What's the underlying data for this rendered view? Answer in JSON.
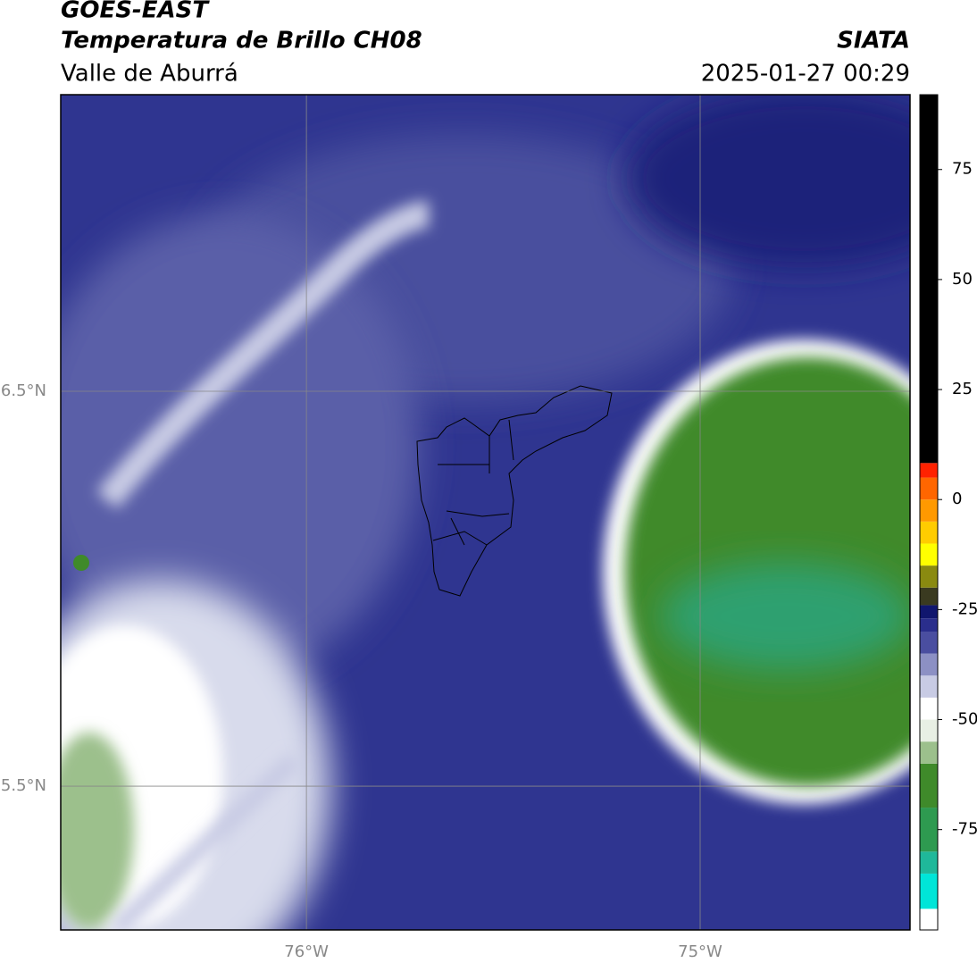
{
  "header": {
    "title": "GOES-EAST",
    "subtitle": "Temperatura de Brillo CH08",
    "region": "Valle de Aburrá",
    "source": "SIATA",
    "datetime": "2025-01-27 00:29"
  },
  "map": {
    "xlim": [
      -76.624,
      -74.467
    ],
    "ylim": [
      5.136,
      7.251
    ],
    "xticks": [
      {
        "value": -76,
        "label": "76°W"
      },
      {
        "value": -75,
        "label": "75°W"
      }
    ],
    "yticks": [
      {
        "value": 6.5,
        "label": "6.5°N"
      },
      {
        "value": 5.5,
        "label": "5.5°N"
      }
    ],
    "grid": true
  },
  "colorbar": {
    "lim": [
      -97.8,
      92
    ],
    "ticks": [
      75,
      50,
      25,
      0,
      -25,
      -50,
      -75
    ],
    "bounds": [
      -97.8,
      -93,
      -85,
      -80,
      -70,
      -60,
      -55,
      -50,
      -45,
      -40,
      -35,
      -30,
      -27,
      -24,
      -20,
      -15,
      -10,
      -5,
      0,
      5,
      8.3,
      92
    ],
    "colors": [
      "#ffffff",
      "#00e5d8",
      "#1fb89a",
      "#2e9a50",
      "#3f8a2a",
      "#9cc08c",
      "#e8efe4",
      "#ffffff",
      "#c8cbe4",
      "#8c90c4",
      "#4a4ea0",
      "#2a2e8c",
      "#10166e",
      "#3a3a20",
      "#8a8a10",
      "#ffff00",
      "#ffcc00",
      "#ff9900",
      "#ff6600",
      "#ff2200",
      "#000000"
    ]
  }
}
